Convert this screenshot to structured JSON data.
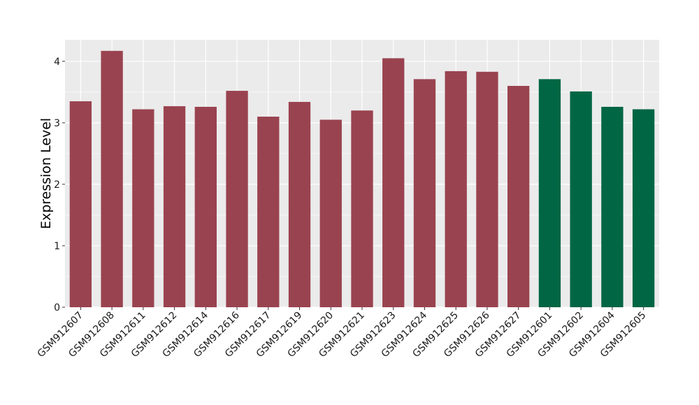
{
  "chart_data": {
    "type": "bar",
    "title": "",
    "xlabel": "",
    "ylabel": "Expression Level",
    "ylim": [
      0,
      4.35
    ],
    "yticks": [
      0,
      1,
      2,
      3,
      4
    ],
    "grid": true,
    "legend": "none",
    "colors": {
      "group_a": "#9a4350",
      "group_b": "#016644",
      "panel": "#ebebeb",
      "grid": "#ffffff"
    },
    "categories": [
      "GSM912607",
      "GSM912608",
      "GSM912611",
      "GSM912612",
      "GSM912614",
      "GSM912616",
      "GSM912617",
      "GSM912619",
      "GSM912620",
      "GSM912621",
      "GSM912623",
      "GSM912624",
      "GSM912625",
      "GSM912626",
      "GSM912627",
      "GSM912601",
      "GSM912602",
      "GSM912604",
      "GSM912605"
    ],
    "values": [
      3.35,
      4.17,
      3.22,
      3.27,
      3.26,
      3.52,
      3.1,
      3.34,
      3.05,
      3.2,
      4.05,
      3.71,
      3.84,
      3.83,
      3.6,
      3.71,
      3.51,
      3.26,
      3.22
    ],
    "groups": [
      "a",
      "a",
      "a",
      "a",
      "a",
      "a",
      "a",
      "a",
      "a",
      "a",
      "a",
      "a",
      "a",
      "a",
      "a",
      "b",
      "b",
      "b",
      "b"
    ]
  }
}
